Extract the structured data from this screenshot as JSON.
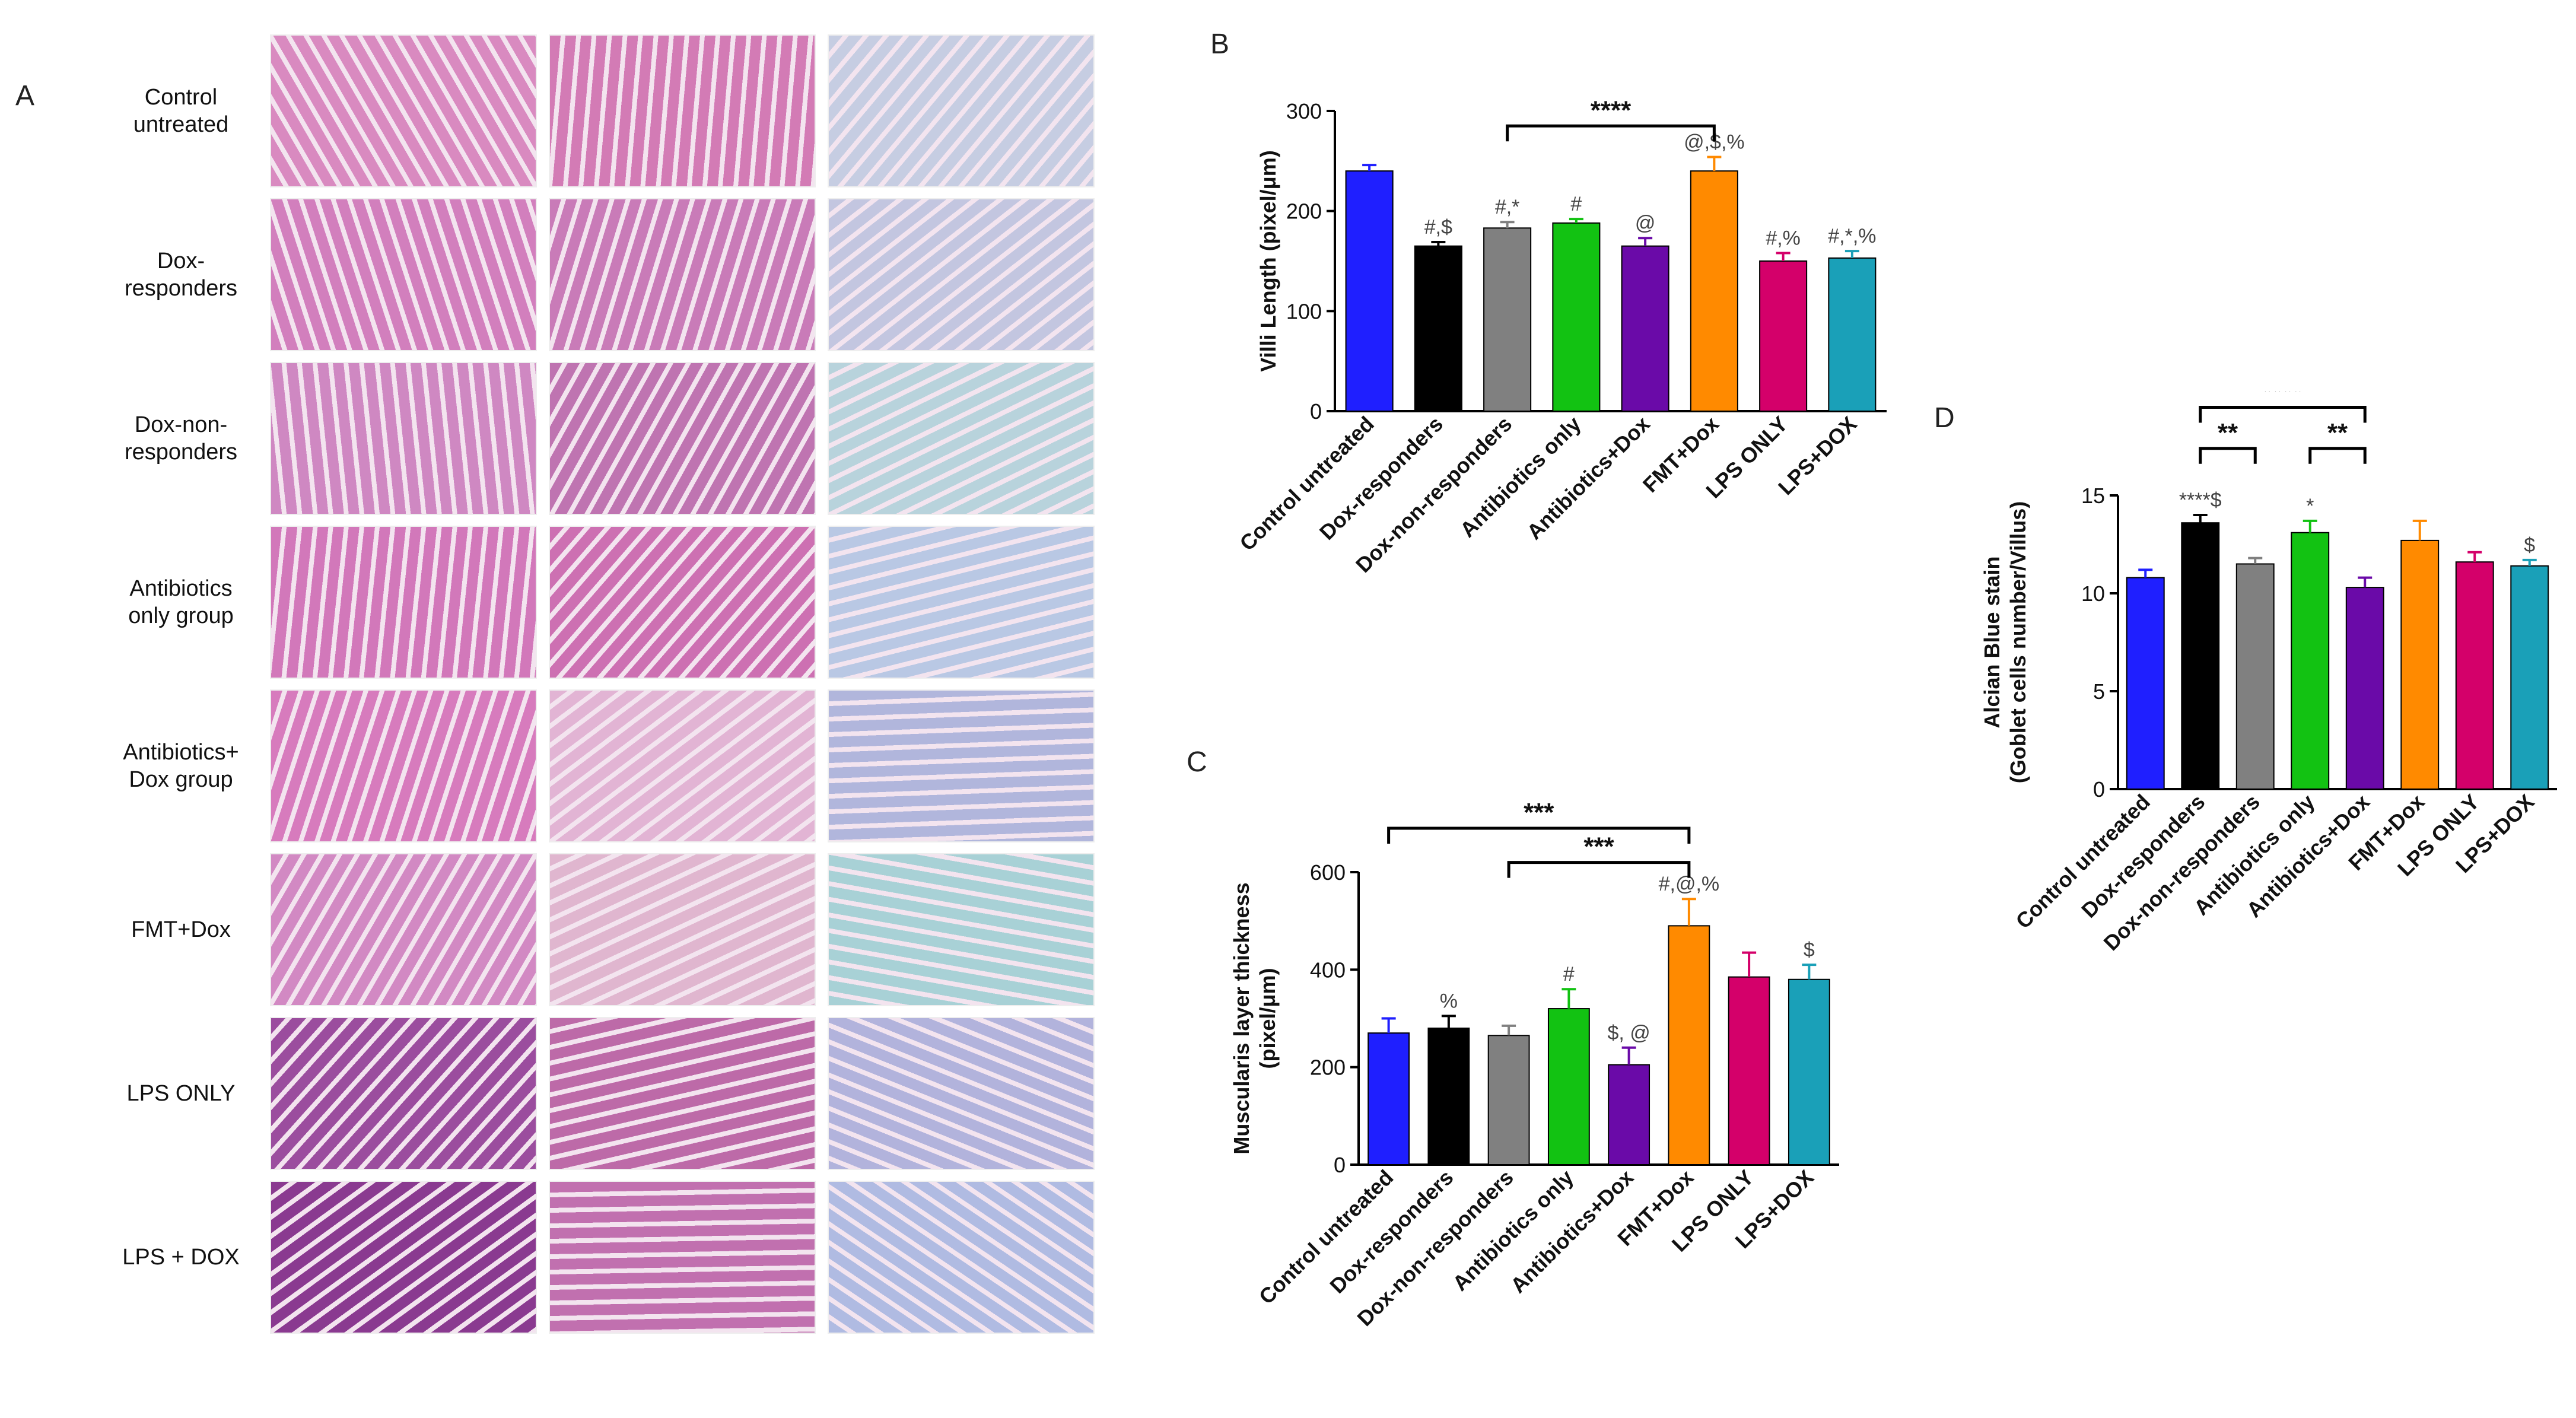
{
  "panel_A": {
    "letter": "A",
    "rows": [
      {
        "label": [
          "Control",
          "untreated"
        ],
        "style": [
          "#d98ac0",
          "#d37bb5",
          "#c6cde2"
        ]
      },
      {
        "label": [
          "Dox-",
          "responders"
        ],
        "style": [
          "#d27fbd",
          "#c97bb8",
          "#c3c6e0"
        ]
      },
      {
        "label": [
          "Dox-non-",
          "responders"
        ],
        "style": [
          "#cf88c2",
          "#bf74b1",
          "#b8d3dc"
        ]
      },
      {
        "label": [
          "Antibiotics",
          "only group"
        ],
        "style": [
          "#d278ba",
          "#cd70b2",
          "#b9c8e4"
        ]
      },
      {
        "label": [
          "Antibiotics+",
          "Dox group"
        ],
        "style": [
          "#d77bbd",
          "#e2b4d4",
          "#b1b6dc"
        ]
      },
      {
        "label": [
          "FMT+Dox"
        ],
        "style": [
          "#d289c3",
          "#e0b6cf",
          "#a8d1d6"
        ]
      },
      {
        "label": [
          "LPS ONLY"
        ],
        "style": [
          "#9b4d9e",
          "#bd6aa8",
          "#b2b3dc"
        ]
      },
      {
        "label": [
          "LPS + DOX"
        ],
        "style": [
          "#8a3a90",
          "#c170af",
          "#b0bbe2"
        ]
      }
    ]
  },
  "chart_data": [
    {
      "id": "B",
      "letter": "B",
      "type": "bar",
      "ylabel": "Villi Length (pixel/μm)",
      "ylim": [
        0,
        300
      ],
      "yticks": [
        "0",
        "100",
        "200",
        "300"
      ],
      "categories": [
        "Control untreated",
        "Dox-responders",
        "Dox-non-responders",
        "Antibiotics only",
        "Antibiotics+Dox",
        "FMT+Dox",
        "LPS ONLY",
        "LPS+DOX"
      ],
      "values": [
        240,
        165,
        183,
        188,
        165,
        240,
        150,
        153
      ],
      "errors": [
        6,
        4,
        6,
        4,
        8,
        14,
        8,
        7
      ],
      "colors": [
        "#1f1fff",
        "#000000",
        "#808080",
        "#12c212",
        "#6a0aa8",
        "#ff8a00",
        "#d4006a",
        "#1aa0b8"
      ],
      "bar_labels": [
        "",
        "#,$",
        "#,*",
        "#",
        "@",
        "@,$,%",
        "#,%",
        "#,*,%"
      ],
      "brackets": [
        {
          "from": 2,
          "to": 5,
          "y": 285,
          "label": "****"
        }
      ]
    },
    {
      "id": "C",
      "letter": "C",
      "type": "bar",
      "ylabel": [
        "Muscularis layer thickness",
        "(pixel/μm)"
      ],
      "ylim": [
        0,
        600
      ],
      "yticks": [
        "0",
        "200",
        "400",
        "600"
      ],
      "categories": [
        "Control untreated",
        "Dox-responders",
        "Dox-non-responders",
        "Antibiotics only",
        "Antibiotics+Dox",
        "FMT+Dox",
        "LPS ONLY",
        "LPS+DOX"
      ],
      "values": [
        270,
        280,
        265,
        320,
        205,
        490,
        385,
        380
      ],
      "errors": [
        30,
        25,
        20,
        40,
        35,
        55,
        50,
        30
      ],
      "colors": [
        "#1f1fff",
        "#000000",
        "#808080",
        "#12c212",
        "#6a0aa8",
        "#ff8a00",
        "#d4006a",
        "#1aa0b8"
      ],
      "bar_labels": [
        "",
        "%",
        "",
        "#",
        "$, @",
        "#,@,%",
        "",
        "$"
      ],
      "brackets": [
        {
          "from": 0,
          "to": 5,
          "y": 690,
          "label": "***"
        },
        {
          "from": 2,
          "to": 5,
          "y": 620,
          "label": "***"
        }
      ]
    },
    {
      "id": "D",
      "letter": "D",
      "type": "bar",
      "ylabel": [
        "Alcian Blue stain",
        "(Goblet cells number/Villus)"
      ],
      "ylim": [
        0,
        15
      ],
      "yticks": [
        "0",
        "5",
        "10",
        "15"
      ],
      "categories": [
        "Control untreated",
        "Dox-responders",
        "Dox-non-responders",
        "Antibiotics only",
        "Antibiotics+Dox",
        "FMT+Dox",
        "LPS ONLY",
        "LPS+DOX"
      ],
      "values": [
        10.8,
        13.6,
        11.5,
        13.1,
        10.3,
        12.7,
        11.6,
        11.4
      ],
      "errors": [
        0.4,
        0.4,
        0.3,
        0.6,
        0.5,
        1.0,
        0.5,
        0.3
      ],
      "colors": [
        "#1f1fff",
        "#000000",
        "#808080",
        "#12c212",
        "#6a0aa8",
        "#ff8a00",
        "#d4006a",
        "#1aa0b8"
      ],
      "bar_labels": [
        "",
        "****$",
        "",
        "*",
        "",
        "",
        "",
        "$"
      ],
      "brackets": [
        {
          "from": 1,
          "to": 4,
          "y": 19.5,
          "label": "****"
        },
        {
          "from": 1,
          "to": 2,
          "y": 17.4,
          "label": "**"
        },
        {
          "from": 3,
          "to": 4,
          "y": 17.4,
          "label": "**"
        }
      ]
    }
  ]
}
